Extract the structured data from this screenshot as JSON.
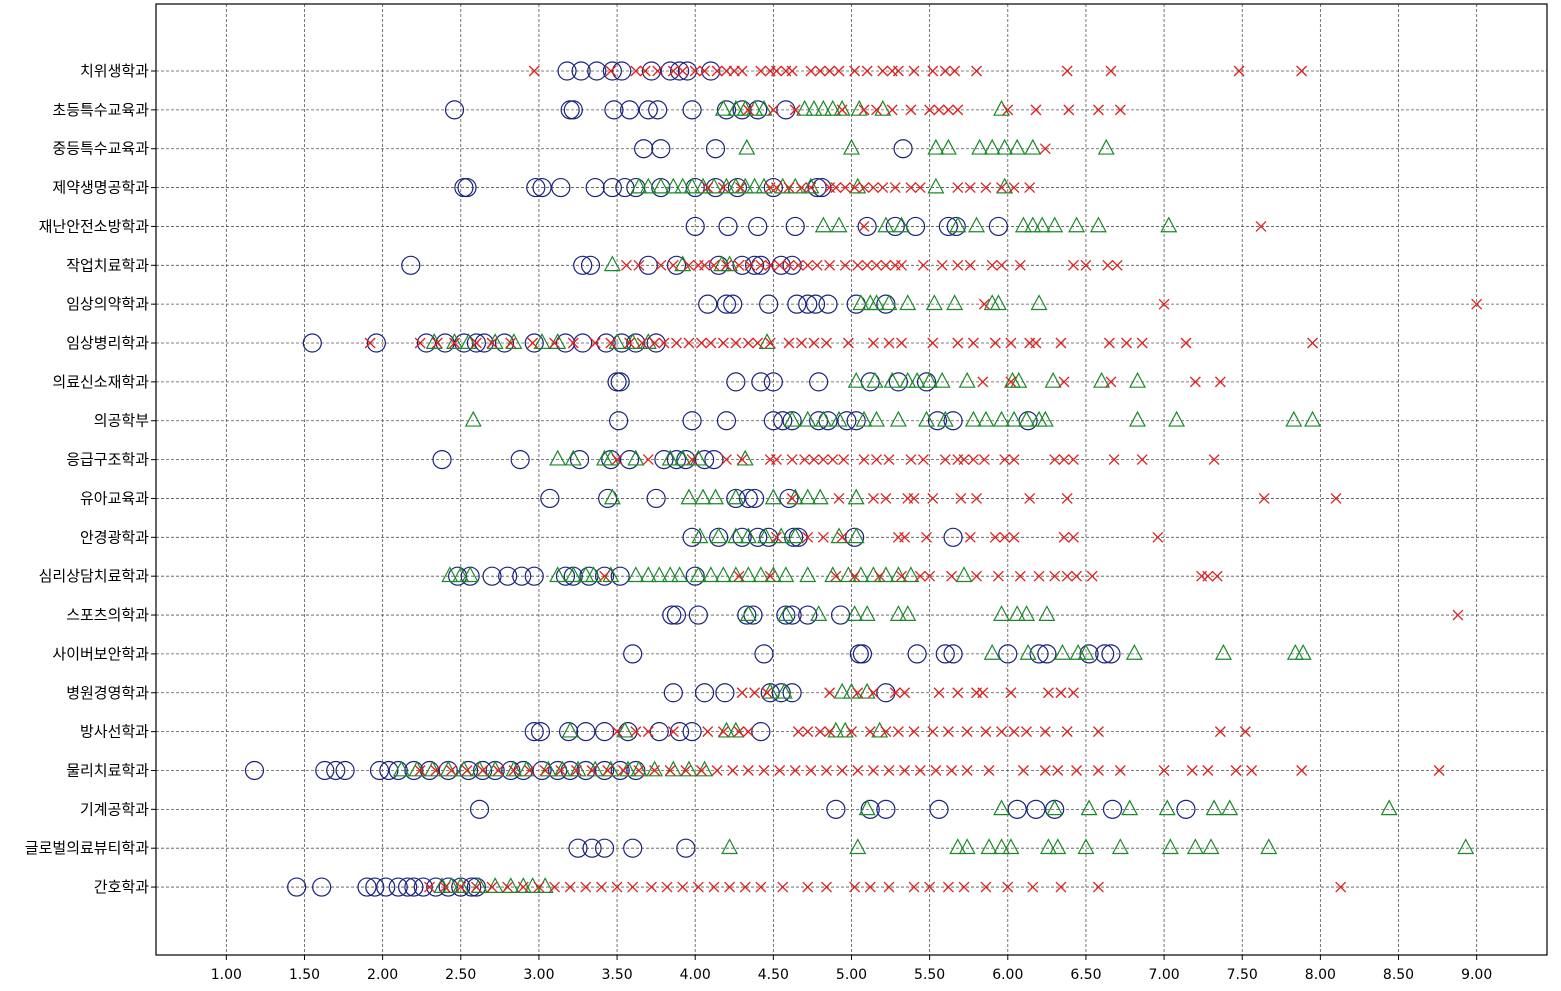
{
  "chart_data": {
    "type": "scatter",
    "title": "",
    "xlabel": "",
    "ylabel": "",
    "xlim": [
      0.55,
      9.45
    ],
    "x_ticks": [
      "1.00",
      "1.50",
      "2.00",
      "2.50",
      "3.00",
      "3.50",
      "4.00",
      "4.50",
      "5.00",
      "5.50",
      "6.00",
      "6.50",
      "7.00",
      "7.50",
      "8.00",
      "8.50",
      "9.00"
    ],
    "grid": true,
    "categories": [
      "치위생학과",
      "초등특수교육과",
      "중등특수교육과",
      "제약생명공학과",
      "재난안전소방학과",
      "작업치료학과",
      "임상의약학과",
      "임상병리학과",
      "의료신소재학과",
      "의공학부",
      "응급구조학과",
      "유아교육과",
      "안경광학과",
      "심리상담치료학과",
      "스포츠의학과",
      "사이버보안학과",
      "병원경영학과",
      "방사선학과",
      "물리치료학과",
      "기계공학과",
      "글로벌의료뷰티학과",
      "간호학과"
    ],
    "series": [
      {
        "marker": "circle",
        "color": "#1a237e",
        "points": {
          "치위생학과": [
            3.18,
            3.27,
            3.37,
            3.47,
            3.53,
            3.72,
            3.84,
            3.9,
            3.95,
            4.1
          ],
          "초등특수교육과": [
            2.46,
            3.2,
            3.22,
            3.48,
            3.58,
            3.7,
            3.76,
            3.98,
            4.2,
            4.3,
            4.4,
            4.58
          ],
          "중등특수교육과": [
            3.67,
            3.78,
            4.13,
            5.33
          ],
          "제약생명공학과": [
            2.52,
            2.54,
            2.98,
            3.02,
            3.14,
            3.36,
            3.47,
            3.55,
            3.62,
            3.78,
            4.0,
            4.13,
            4.27,
            4.5,
            4.78,
            4.81
          ],
          "재난안전소방학과": [
            4.0,
            4.21,
            4.4,
            4.64,
            5.1,
            5.28,
            5.41,
            5.62,
            5.67,
            5.94
          ],
          "작업치료학과": [
            2.18,
            3.28,
            3.33,
            3.7,
            3.88,
            4.15,
            4.3,
            4.38,
            4.42,
            4.55,
            4.62
          ],
          "임상의약학과": [
            4.08,
            4.2,
            4.24,
            4.47,
            4.65,
            4.72,
            4.77,
            4.85,
            5.03,
            5.22
          ],
          "임상병리학과": [
            1.55,
            1.96,
            2.28,
            2.4,
            2.52,
            2.6,
            2.65,
            2.78,
            2.97,
            3.17,
            3.28,
            3.43,
            3.53,
            3.62,
            3.75
          ],
          "의료신소재학과": [
            3.5,
            3.52,
            4.26,
            4.42,
            4.5,
            4.79,
            5.12,
            5.3,
            5.48
          ],
          "의공학부": [
            3.51,
            3.98,
            4.2,
            4.5,
            4.56,
            4.62,
            4.79,
            4.85,
            4.97,
            5.03,
            5.55,
            5.65,
            6.13
          ],
          "응급구조학과": [
            2.38,
            2.88,
            3.26,
            3.46,
            3.58,
            3.8,
            3.88,
            3.94,
            4.06,
            4.12
          ],
          "유아교육과": [
            3.07,
            3.44,
            3.75,
            4.26,
            4.34,
            4.38,
            4.6
          ],
          "안경광학과": [
            3.98,
            4.15,
            4.3,
            4.4,
            4.47,
            4.63,
            4.66,
            5.02,
            5.65
          ],
          "심리상담치료학과": [
            2.48,
            2.56,
            2.7,
            2.8,
            2.89,
            2.97,
            3.17,
            3.22,
            3.32,
            3.42,
            3.52,
            4.0
          ],
          "스포츠의학과": [
            3.85,
            3.88,
            4.02,
            4.33,
            4.37,
            4.58,
            4.62,
            4.72,
            4.93
          ],
          "사이버보안학과": [
            3.6,
            4.44,
            5.05,
            5.07,
            5.42,
            5.6,
            5.65,
            6.0,
            6.2,
            6.25,
            6.52,
            6.62,
            6.66
          ],
          "병원경영학과": [
            3.86,
            4.06,
            4.19,
            4.48,
            4.55,
            4.62,
            5.22
          ],
          "방사선학과": [
            2.97,
            3.01,
            3.19,
            3.3,
            3.42,
            3.57,
            3.77,
            3.9,
            3.98,
            4.42
          ],
          "물리치료학과": [
            1.18,
            1.63,
            1.7,
            1.76,
            1.98,
            2.04,
            2.1,
            2.2,
            2.3,
            2.42,
            2.55,
            2.64,
            2.72,
            2.82,
            2.9,
            3.02,
            3.12,
            3.2,
            3.3,
            3.42,
            3.52,
            3.62
          ],
          "기계공학과": [
            2.62,
            4.9,
            5.12,
            5.22,
            5.56,
            6.06,
            6.18,
            6.3,
            6.67,
            7.14
          ],
          "글로벌의료뷰티학과": [
            3.25,
            3.34,
            3.42,
            3.6,
            3.94
          ],
          "간호학과": [
            1.45,
            1.61,
            1.9,
            1.95,
            2.02,
            2.1,
            2.16,
            2.2,
            2.26,
            2.34,
            2.42,
            2.5,
            2.57,
            2.6
          ]
        }
      },
      {
        "marker": "triangle",
        "color": "#1b8a2a",
        "points": {
          "치위생학과": [],
          "초등특수교육과": [
            4.18,
            4.26,
            4.32,
            4.38,
            4.44,
            4.7,
            4.76,
            4.82,
            4.88,
            4.94,
            5.05,
            5.2,
            5.96
          ],
          "중등특수교육과": [
            4.33,
            5.0,
            5.54,
            5.62,
            5.82,
            5.9,
            5.98,
            6.06,
            6.16,
            6.63
          ],
          "제약생명공학과": [
            3.64,
            3.7,
            3.78,
            3.86,
            3.92,
            3.98,
            4.05,
            4.12,
            4.2,
            4.26,
            4.32,
            4.38,
            4.44,
            4.56,
            4.64,
            4.74,
            5.04,
            5.54,
            5.98
          ],
          "재난안전소방학과": [
            4.82,
            4.92,
            5.22,
            5.32,
            5.68,
            5.8,
            6.1,
            6.16,
            6.22,
            6.3,
            6.44,
            6.58,
            7.03
          ],
          "작업치료학과": [
            3.47,
            3.92,
            4.17,
            4.22
          ],
          "임상의약학과": [
            5.06,
            5.12,
            5.16,
            5.24,
            5.36,
            5.53,
            5.66,
            5.9,
            5.94,
            6.2
          ],
          "임상병리학과": [
            2.33,
            2.46,
            2.55,
            2.72,
            2.84,
            3.02,
            3.12,
            3.5,
            3.6,
            3.7,
            4.46
          ],
          "의료신소재학과": [
            5.03,
            5.15,
            5.26,
            5.36,
            5.42,
            5.5,
            5.58,
            5.74,
            6.03,
            6.07,
            6.29,
            6.6,
            6.83
          ],
          "의공학부": [
            2.58,
            4.62,
            4.72,
            4.82,
            4.92,
            5.08,
            5.16,
            5.3,
            5.48,
            5.6,
            5.78,
            5.86,
            5.96,
            6.04,
            6.12,
            6.2,
            6.24,
            6.83,
            7.08,
            7.83,
            7.95
          ],
          "응급구조학과": [
            3.12,
            3.22,
            3.42,
            3.46,
            3.62,
            3.84,
            3.92,
            4.02,
            4.32
          ],
          "유아교육과": [
            3.47,
            3.96,
            4.05,
            4.13,
            4.26,
            4.5,
            4.64,
            4.72,
            4.8,
            5.03
          ],
          "안경광학과": [
            4.03,
            4.15,
            4.26,
            4.34,
            4.45,
            4.55,
            4.64,
            4.92,
            5.03
          ],
          "심리상담치료학과": [
            2.43,
            2.5,
            2.56,
            3.12,
            3.22,
            3.3,
            3.35,
            3.46,
            3.62,
            3.7,
            3.77,
            3.84,
            3.9,
            4.02,
            4.1,
            4.18,
            4.26,
            4.34,
            4.42,
            4.5,
            4.58,
            4.72,
            4.88,
            4.98,
            5.06,
            5.14,
            5.22,
            5.3,
            5.38,
            5.72
          ],
          "스포츠의학과": [
            4.34,
            4.58,
            4.79,
            5.02,
            5.1,
            5.3,
            5.36,
            5.96,
            6.06,
            6.12,
            6.25
          ],
          "사이버보안학과": [
            5.9,
            6.13,
            6.35,
            6.45,
            6.5,
            6.81,
            7.38,
            7.84,
            7.89
          ],
          "병원경영학과": [
            4.48,
            4.57,
            4.94,
            5.0,
            5.1
          ],
          "방사선학과": [
            3.2,
            3.55,
            4.2,
            4.26,
            4.9,
            4.96,
            5.18
          ],
          "물리치료학과": [
            2.12,
            2.22,
            2.32,
            2.42,
            2.52,
            2.62,
            2.72,
            2.84,
            2.92,
            3.06,
            3.15,
            3.25,
            3.36,
            3.46,
            3.57,
            3.64,
            3.74,
            3.86,
            3.96,
            4.06
          ],
          "기계공학과": [
            5.1,
            5.96,
            6.3,
            6.52,
            6.78,
            7.02,
            7.32,
            7.42,
            8.44
          ],
          "글로벌의료뷰티학과": [
            4.22,
            5.04,
            5.68,
            5.74,
            5.88,
            5.96,
            6.02,
            6.26,
            6.32,
            6.5,
            6.72,
            7.04,
            7.2,
            7.3,
            7.67,
            8.93
          ],
          "간호학과": [
            2.38,
            2.44,
            2.5,
            2.62,
            2.72,
            2.82,
            2.9,
            2.96,
            3.04
          ]
        }
      },
      {
        "marker": "x",
        "color": "#e0201e",
        "points": {
          "치위생학과": [
            2.97,
            3.46,
            3.62,
            3.68,
            3.76,
            3.86,
            3.92,
            4.0,
            4.06,
            4.14,
            4.2,
            4.25,
            4.3,
            4.42,
            4.48,
            4.52,
            4.58,
            4.62,
            4.74,
            4.8,
            4.86,
            4.92,
            5.02,
            5.1,
            5.2,
            5.26,
            5.3,
            5.4,
            5.52,
            5.6,
            5.66,
            5.8,
            6.38,
            6.66,
            7.48,
            7.88
          ],
          "초등특수교육과": [
            4.34,
            4.5,
            4.64,
            4.94,
            5.08,
            5.16,
            5.26,
            5.38,
            5.5,
            5.56,
            5.62,
            5.68,
            6.0,
            6.18,
            6.39,
            6.58,
            6.72
          ],
          "중등특수교육과": [
            6.24
          ],
          "제약생명공학과": [
            4.08,
            4.18,
            4.29,
            4.48,
            4.52,
            4.6,
            4.68,
            4.74,
            4.86,
            4.9,
            4.96,
            5.02,
            5.08,
            5.14,
            5.2,
            5.28,
            5.38,
            5.44,
            5.68,
            5.76,
            5.86,
            5.96,
            6.04,
            6.14
          ],
          "재난안전소방학과": [
            5.08,
            7.62
          ],
          "작업치료학과": [
            3.56,
            3.64,
            3.78,
            3.86,
            3.96,
            4.02,
            4.06,
            4.12,
            4.2,
            4.28,
            4.35,
            4.42,
            4.48,
            4.54,
            4.6,
            4.66,
            4.72,
            4.78,
            4.86,
            4.96,
            5.04,
            5.1,
            5.16,
            5.22,
            5.28,
            5.32,
            5.46,
            5.58,
            5.68,
            5.76,
            5.9,
            5.96,
            6.08,
            6.42,
            6.5,
            6.64,
            6.7
          ],
          "임상의약학과": [
            5.85,
            7.0,
            9.0
          ],
          "임상병리학과": [
            1.92,
            2.24,
            2.35,
            2.46,
            2.6,
            2.7,
            2.82,
            2.96,
            3.1,
            3.22,
            3.36,
            3.46,
            3.58,
            3.66,
            3.74,
            3.8,
            3.88,
            3.96,
            4.04,
            4.1,
            4.18,
            4.26,
            4.34,
            4.4,
            4.48,
            4.6,
            4.68,
            4.76,
            4.84,
            4.98,
            5.14,
            5.24,
            5.32,
            5.52,
            5.68,
            5.78,
            5.92,
            6.02,
            6.14,
            6.18,
            6.34,
            6.65,
            6.76,
            6.86,
            7.14,
            7.95
          ],
          "의료신소재학과": [
            5.84,
            6.02,
            6.36,
            6.66,
            7.2,
            7.36
          ],
          "의공학부": [],
          "응급구조학과": [
            3.5,
            3.7,
            3.98,
            4.2,
            4.3,
            4.48,
            4.52,
            4.62,
            4.7,
            4.76,
            4.82,
            4.88,
            4.95,
            5.08,
            5.16,
            5.24,
            5.38,
            5.46,
            5.6,
            5.68,
            5.72,
            5.78,
            5.85,
            5.98,
            6.04,
            6.3,
            6.36,
            6.42,
            6.68,
            6.86,
            7.32
          ],
          "유아교육과": [
            4.62,
            4.92,
            5.14,
            5.22,
            5.36,
            5.4,
            5.52,
            5.7,
            5.8,
            6.14,
            6.38,
            7.64,
            8.1
          ],
          "안경광학과": [
            4.52,
            4.72,
            4.82,
            4.94,
            5.3,
            5.34,
            5.48,
            5.76,
            5.92,
            5.98,
            6.04,
            6.36,
            6.42,
            6.96
          ],
          "심리상담치료학과": [
            3.42,
            4.28,
            4.48,
            4.9,
            5.02,
            5.18,
            5.32,
            5.44,
            5.5,
            5.64,
            5.8,
            5.94,
            6.08,
            6.2,
            6.3,
            6.38,
            6.44,
            6.54,
            7.24,
            7.28,
            7.34
          ],
          "스포츠의학과": [
            8.88
          ],
          "사이버보안학과": [],
          "병원경영학과": [
            4.3,
            4.38,
            4.46,
            4.86,
            5.04,
            5.14,
            5.28,
            5.34,
            5.56,
            5.68,
            5.8,
            5.84,
            6.02,
            6.26,
            6.34,
            6.42
          ],
          "방사선학과": [
            3.5,
            3.62,
            3.7,
            3.86,
            4.08,
            4.18,
            4.28,
            4.34,
            4.66,
            4.72,
            4.8,
            4.86,
            5.0,
            5.12,
            5.22,
            5.3,
            5.4,
            5.52,
            5.62,
            5.74,
            5.86,
            5.96,
            6.04,
            6.12,
            6.24,
            6.38,
            6.58,
            7.36,
            7.52
          ],
          "물리치료학과": [
            2.24,
            2.34,
            2.44,
            2.54,
            2.64,
            2.74,
            2.84,
            2.94,
            3.04,
            3.14,
            3.24,
            3.34,
            3.44,
            3.54,
            3.64,
            3.74,
            3.84,
            3.94,
            4.04,
            4.14,
            4.24,
            4.34,
            4.44,
            4.54,
            4.64,
            4.74,
            4.84,
            4.94,
            5.04,
            5.14,
            5.24,
            5.34,
            5.44,
            5.54,
            5.64,
            5.74,
            5.88,
            6.1,
            6.24,
            6.32,
            6.44,
            6.58,
            6.72,
            7.0,
            7.18,
            7.28,
            7.46,
            7.56,
            7.88,
            8.76
          ],
          "기계공학과": [],
          "글로벌의료뷰티학과": [],
          "간호학과": [
            2.3,
            2.4,
            2.5,
            2.6,
            2.7,
            2.8,
            2.9,
            3.0,
            3.1,
            3.2,
            3.3,
            3.4,
            3.5,
            3.6,
            3.72,
            3.82,
            3.92,
            4.02,
            4.12,
            4.22,
            4.32,
            4.42,
            4.56,
            4.72,
            4.84,
            5.02,
            5.12,
            5.24,
            5.4,
            5.5,
            5.62,
            5.72,
            5.86,
            6.0,
            6.16,
            6.34,
            6.58,
            8.13
          ]
        }
      }
    ]
  }
}
